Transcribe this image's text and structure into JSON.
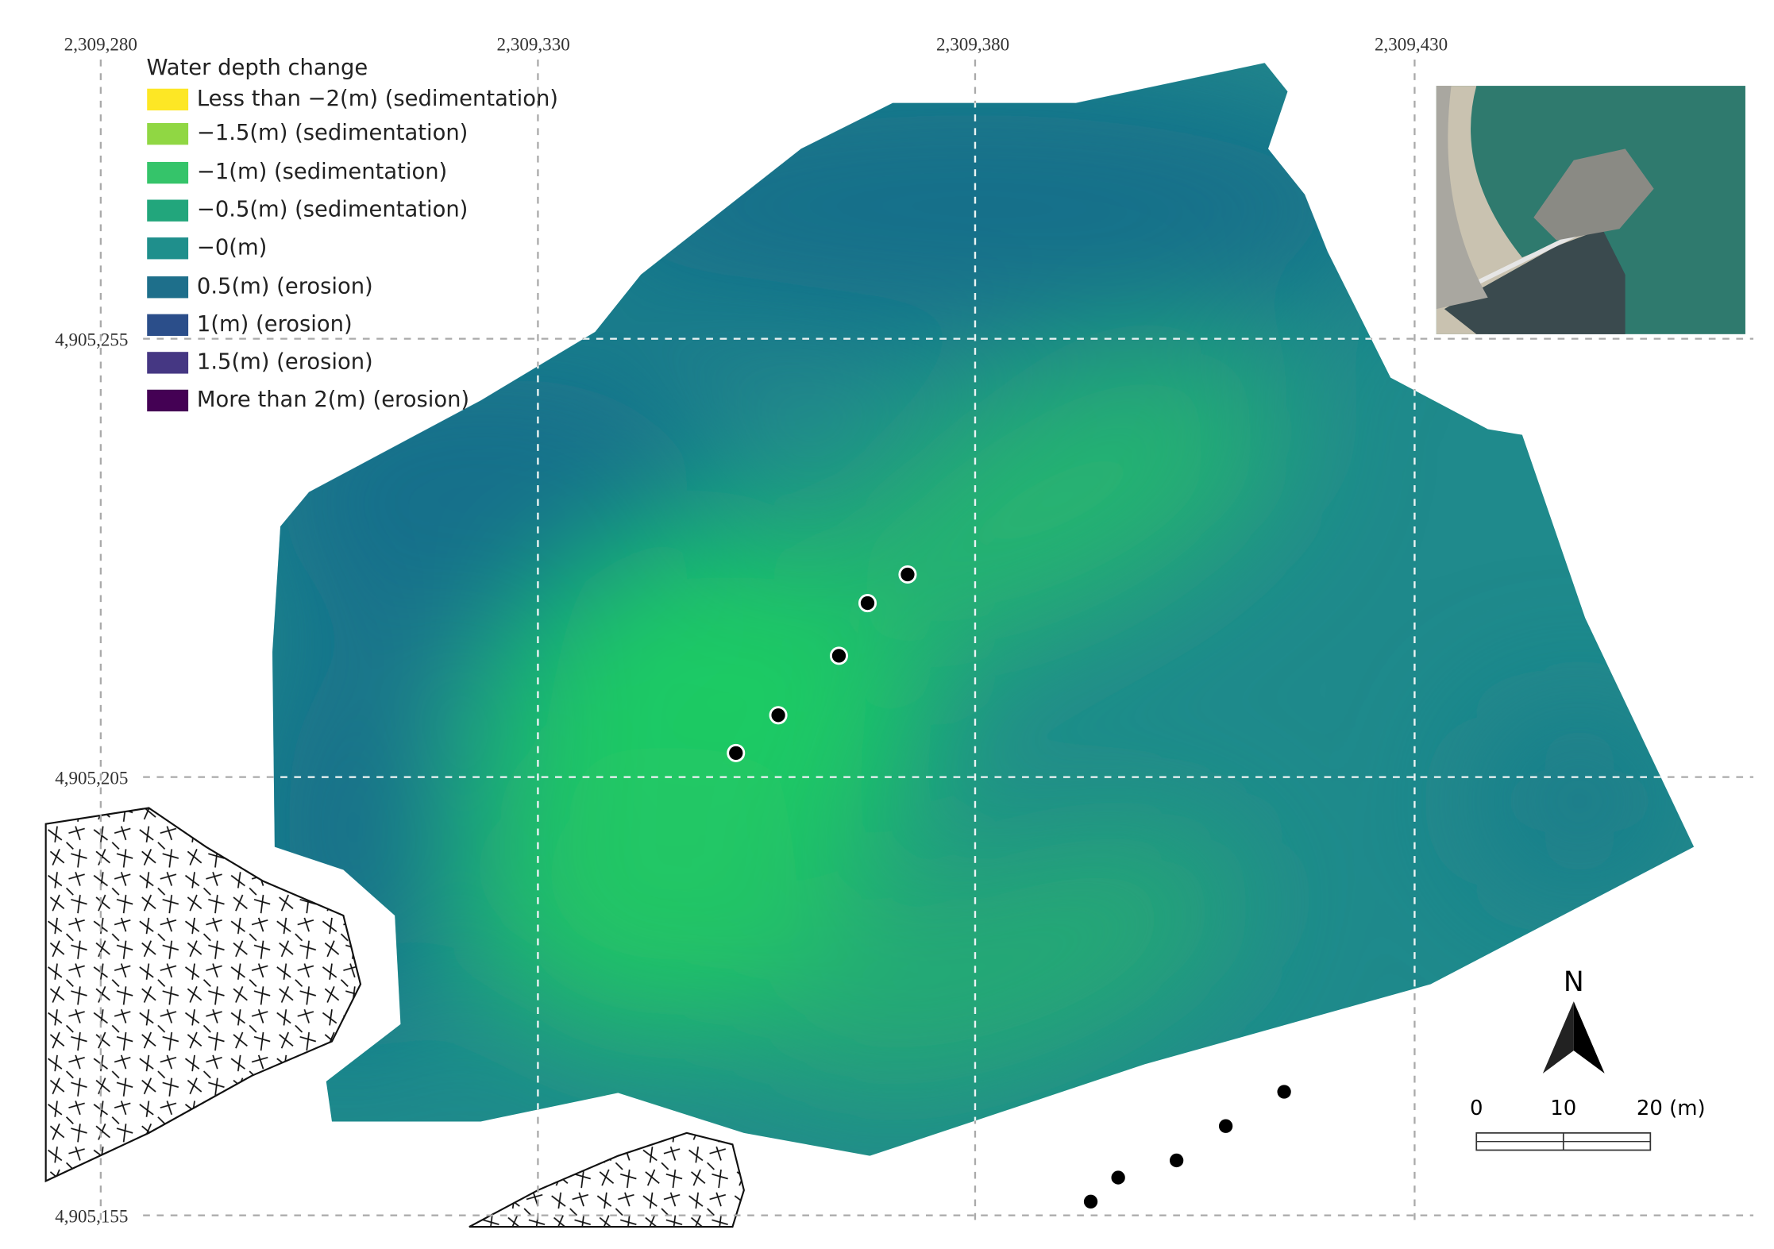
{
  "map": {
    "x_labels": [
      "2,309,280",
      "2,309,330",
      "2,309,380",
      "2,309,430"
    ],
    "y_labels": [
      "4,905,255",
      "4,905,205",
      "4,905,155"
    ],
    "legend": {
      "title": "Water depth change",
      "items": [
        {
          "label": "Less than −2(m) (sedimentation)",
          "color": "#fde725"
        },
        {
          "label": "−1.5(m) (sedimentation)",
          "color": "#90d743"
        },
        {
          "label": "−1(m) (sedimentation)",
          "color": "#35c46a"
        },
        {
          "label": "−0.5(m) (sedimentation)",
          "color": "#22a67c"
        },
        {
          "label": "−0(m)",
          "color": "#1f8f8c"
        },
        {
          "label": "0.5(m) (erosion)",
          "color": "#1e6f8b"
        },
        {
          "label": "1(m) (erosion)",
          "color": "#2b4e8a"
        },
        {
          "label": "1.5(m) (erosion)",
          "color": "#453783"
        },
        {
          "label": "More than 2(m) (erosion)",
          "color": "#440154"
        }
      ]
    },
    "north": "N",
    "scale_labels": [
      "0",
      "10",
      "20 (m)"
    ]
  }
}
